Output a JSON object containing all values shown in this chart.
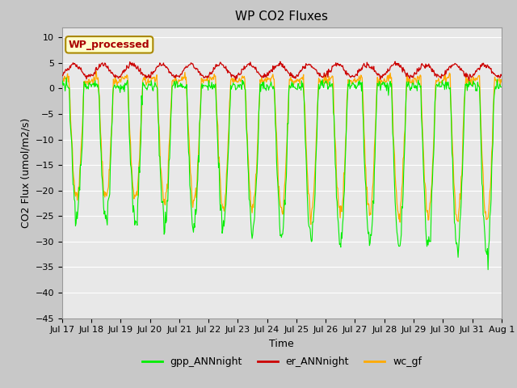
{
  "title": "WP CO2 Fluxes",
  "xlabel": "Time",
  "ylabel": "CO2 Flux (umol/m2/s)",
  "ylim": [
    -45,
    12
  ],
  "yticks": [
    10,
    5,
    0,
    -5,
    -10,
    -15,
    -20,
    -25,
    -30,
    -35,
    -40,
    -45
  ],
  "n_days": 15,
  "points_per_day": 48,
  "gpp_color": "#00ee00",
  "er_color": "#cc0000",
  "wc_color": "#ffaa00",
  "gpp_label": "gpp_ANNnight",
  "er_label": "er_ANNnight",
  "wc_label": "wc_gf",
  "annotation_text": "WP_processed",
  "annotation_bg": "#ffffcc",
  "annotation_fg": "#aa0000",
  "fig_bg": "#c8c8c8",
  "ax_bg": "#e8e8e8",
  "grid_color": "#ffffff",
  "title_fontsize": 11,
  "label_fontsize": 9,
  "tick_fontsize": 8,
  "legend_fontsize": 9
}
